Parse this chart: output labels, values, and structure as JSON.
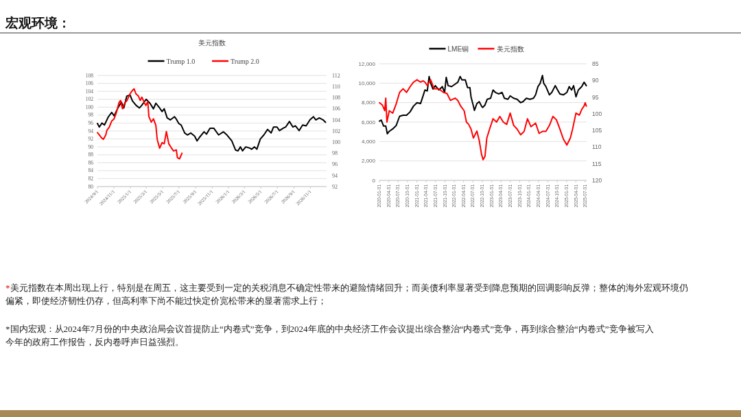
{
  "chart_data": [
    {
      "type": "other",
      "title": "宏观环境：",
      "annotations": [
        "*美元指数在本周出现上行，特别是在周五，这主要受到一定的关税消息不确定性带来的避险情绪回升；而美债利率显著受到降息预期的回调影响反弹；整体的海外宏观环境仍偏紧，即使经济韧性仍存，但高利率下尚不能过快定价宽松带来的显著需求上行；",
        "*国内宏观：从2024年7月份的中央政治局会议首提防止“内卷式”竞争，到2024年底的中央经济工作会议提出综合整治“内卷式”竞争，再到综合整治“内卷式”竞争被写入今年的政府工作报告，反内卷呼声日益强烈。"
      ]
    },
    {
      "type": "line",
      "title": "美元指数",
      "legend": "top",
      "grid": "y",
      "xlim": [
        "2024-09-01",
        "2026-12-31"
      ],
      "ylim": [
        80,
        108
      ],
      "yticks": [
        80,
        82,
        84,
        86,
        88,
        90,
        92,
        94,
        96,
        98,
        100,
        102,
        104,
        106,
        108
      ],
      "y2lim": [
        92,
        112
      ],
      "y2ticks": [
        92,
        94,
        96,
        98,
        100,
        102,
        104,
        106,
        108,
        110,
        112
      ],
      "xticks": [
        {
          "value": "2024-09-01",
          "label": "2024/9/1"
        },
        {
          "value": "2024-11-01",
          "label": "2024/11/1"
        },
        {
          "value": "2025-01-01",
          "label": "2025/1/1"
        },
        {
          "value": "2025-03-01",
          "label": "2025/3/1"
        },
        {
          "value": "2025-05-01",
          "label": "2025/5/1"
        },
        {
          "value": "2025-07-01",
          "label": "2025/7/1"
        },
        {
          "value": "2025-09-01",
          "label": "2025/9/1"
        },
        {
          "value": "2025-11-01",
          "label": "2025/11/1"
        },
        {
          "value": "2026-01-01",
          "label": "2026/1/1"
        },
        {
          "value": "2026-03-01",
          "label": "2026/3/1"
        },
        {
          "value": "2026-05-01",
          "label": "2026/5/1"
        },
        {
          "value": "2026-07-01",
          "label": "2026/7/1"
        },
        {
          "value": "2026-09-01",
          "label": "2026/9/1"
        },
        {
          "value": "2026-11-01",
          "label": "2026/11/1"
        }
      ],
      "series": [
        {
          "name": "Trump 1.0",
          "color": "#000000",
          "x": [
            "2024-09-01",
            "2024-09-08",
            "2024-09-18",
            "2024-09-27",
            "2024-10-11",
            "2024-10-24",
            "2024-11-02",
            "2024-11-16",
            "2024-11-29",
            "2024-12-08",
            "2024-12-19",
            "2024-12-31",
            "2025-01-09",
            "2025-01-22",
            "2025-02-04",
            "2025-02-13",
            "2025-03-01",
            "2025-03-15",
            "2025-03-28",
            "2025-04-06",
            "2025-04-20",
            "2025-04-29",
            "2025-05-07",
            "2025-05-18",
            "2025-05-30",
            "2025-06-14",
            "2025-06-21",
            "2025-06-30",
            "2025-07-09",
            "2025-07-22",
            "2025-08-01",
            "2025-08-14",
            "2025-08-28",
            "2025-09-06",
            "2025-09-15",
            "2025-10-02",
            "2025-10-11",
            "2025-10-24",
            "2025-11-07",
            "2025-11-25",
            "2025-12-13",
            "2025-12-26",
            "2026-01-13",
            "2026-01-27",
            "2026-02-05",
            "2026-02-14",
            "2026-02-22",
            "2026-03-06",
            "2026-03-20",
            "2026-03-28",
            "2026-04-07",
            "2026-04-16",
            "2026-04-29",
            "2026-05-12",
            "2026-05-26",
            "2026-06-08",
            "2026-06-17",
            "2026-06-30",
            "2026-07-09",
            "2026-07-23",
            "2026-08-01",
            "2026-08-15",
            "2026-08-28",
            "2026-09-06",
            "2026-09-20",
            "2026-10-03",
            "2026-10-16",
            "2026-10-30",
            "2026-11-12",
            "2026-11-21",
            "2026-12-04",
            "2026-12-18",
            "2026-12-27"
          ],
          "values": [
            95.9,
            95,
            96,
            95.5,
            97.5,
            98.7,
            97.8,
            99.8,
            101.3,
            99.8,
            102.8,
            103.1,
            101.6,
            100.5,
            99.8,
            100.5,
            102,
            101,
            99.6,
            101,
            99.8,
            98.9,
            99.6,
            97.3,
            96.8,
            97.6,
            97,
            95.9,
            95.5,
            93.5,
            93,
            93.5,
            92.7,
            91.5,
            92.4,
            93.8,
            93.2,
            94.7,
            94.7,
            93,
            93.8,
            93,
            91.5,
            89.2,
            89,
            90,
            89,
            90,
            89.7,
            89.4,
            90,
            89.4,
            92,
            93,
            94.4,
            93.5,
            95,
            95,
            94.1,
            94.7,
            95,
            96.4,
            95,
            95.3,
            94.1,
            95.5,
            95.3,
            96.8,
            97.6,
            96.8,
            97.3,
            96.8,
            96.2
          ]
        },
        {
          "name": "Trump 2.0",
          "color": "#ff0000",
          "axis": "y2",
          "x": [
            "2024-09-01",
            "2024-09-08",
            "2024-09-14",
            "2024-09-23",
            "2024-10-02",
            "2024-10-06",
            "2024-10-15",
            "2024-10-24",
            "2024-11-02",
            "2024-11-11",
            "2024-11-20",
            "2024-11-26",
            "2024-12-03",
            "2024-12-12",
            "2024-12-20",
            "2024-12-31",
            "2025-01-09",
            "2025-01-15",
            "2025-01-22",
            "2025-01-31",
            "2025-02-07",
            "2025-02-13",
            "2025-02-22",
            "2025-02-28",
            "2025-03-07",
            "2025-03-11",
            "2025-03-20",
            "2025-03-28",
            "2025-04-06",
            "2025-04-11",
            "2025-04-20",
            "2025-04-29",
            "2025-05-07",
            "2025-05-15",
            "2025-05-24",
            "2025-06-02",
            "2025-06-11",
            "2025-06-21",
            "2025-06-25",
            "2025-07-03",
            "2025-07-12"
          ],
          "values": [
            101.7,
            101.3,
            100.9,
            100.5,
            101.3,
            102.1,
            102.7,
            103.8,
            104.2,
            105.4,
            107.1,
            107.5,
            106,
            107.1,
            107.5,
            108.7,
            109.3,
            109.6,
            108.7,
            108.3,
            107.5,
            108.1,
            107.1,
            106.6,
            107.3,
            104.6,
            103.6,
            104.2,
            103,
            100.5,
            98.9,
            99.9,
            99.7,
            101.9,
            99.7,
            99,
            98.4,
            98.6,
            97.2,
            97,
            98
          ]
        }
      ]
    },
    {
      "type": "line",
      "legend": "top",
      "grid": "y",
      "xlim": [
        "2020-01-01",
        "2025-07-15"
      ],
      "ylim": [
        0,
        12000
      ],
      "yticks": [
        0,
        {
          "value": 2000,
          "label": "2,000"
        },
        {
          "value": 4000,
          "label": "4,000"
        },
        {
          "value": 6000,
          "label": "6,000"
        },
        {
          "value": 8000,
          "label": "8,000"
        },
        {
          "value": 10000,
          "label": "10,000"
        },
        {
          "value": 12000,
          "label": "12,000"
        }
      ],
      "y2lim": [
        120,
        85
      ],
      "y2ticks": [
        120,
        115,
        110,
        105,
        100,
        95,
        90,
        85
      ],
      "xticks": [
        {
          "value": "2020-01-01",
          "label": "2020-01-01"
        },
        {
          "value": "2020-04-01",
          "label": "2020-04-01"
        },
        {
          "value": "2020-07-01",
          "label": "2020-07-01"
        },
        {
          "value": "2020-10-01",
          "label": "2020-10-01"
        },
        {
          "value": "2021-01-01",
          "label": "2021-01-01"
        },
        {
          "value": "2021-04-01",
          "label": "2021-04-01"
        },
        {
          "value": "2021-07-01",
          "label": "2021-07-01"
        },
        {
          "value": "2021-10-01",
          "label": "2021-10-01"
        },
        {
          "value": "2022-01-01",
          "label": "2022-01-01"
        },
        {
          "value": "2022-04-01",
          "label": "2022-04-01"
        },
        {
          "value": "2022-07-01",
          "label": "2022-07-01"
        },
        {
          "value": "2022-10-01",
          "label": "2022-10-01"
        },
        {
          "value": "2023-01-01",
          "label": "2023-01-01"
        },
        {
          "value": "2023-04-01",
          "label": "2023-04-01"
        },
        {
          "value": "2023-07-01",
          "label": "2023-07-01"
        },
        {
          "value": "2023-10-01",
          "label": "2023-10-01"
        },
        {
          "value": "2024-01-01",
          "label": "2024-01-01"
        },
        {
          "value": "2024-04-01",
          "label": "2024-04-01"
        },
        {
          "value": "2024-07-01",
          "label": "2024-07-01"
        },
        {
          "value": "2024-10-01",
          "label": "2024-10-01"
        },
        {
          "value": "2025-01-01",
          "label": "2025-01-01"
        },
        {
          "value": "2025-04-01",
          "label": "2025-04-01"
        },
        {
          "value": "2025-07-01",
          "label": "2025-07-01"
        }
      ],
      "series": [
        {
          "name": "LME铜",
          "color": "#000000",
          "x": [
            "2020-01-01",
            "2020-01-19",
            "2020-02-10",
            "2020-03-03",
            "2020-03-18",
            "2020-04-06",
            "2020-05-10",
            "2020-06-13",
            "2020-07-16",
            "2020-08-19",
            "2020-09-22",
            "2020-10-26",
            "2020-11-29",
            "2021-01-02",
            "2021-02-05",
            "2021-02-27",
            "2021-03-20",
            "2021-04-12",
            "2021-04-30",
            "2021-05-15",
            "2021-06-07",
            "2021-06-30",
            "2021-08-03",
            "2021-09-06",
            "2021-09-28",
            "2021-10-14",
            "2021-11-01",
            "2021-12-05",
            "2022-01-08",
            "2022-02-04",
            "2022-02-27",
            "2022-03-15",
            "2022-04-18",
            "2022-05-10",
            "2022-06-02",
            "2022-06-13",
            "2022-07-06",
            "2022-07-16",
            "2022-08-09",
            "2022-09-01",
            "2022-09-23",
            "2022-10-04",
            "2022-10-27",
            "2022-11-18",
            "2022-12-21",
            "2023-01-14",
            "2023-02-06",
            "2023-03-10",
            "2023-04-12",
            "2023-05-05",
            "2023-06-08",
            "2023-06-30",
            "2023-08-03",
            "2023-09-06",
            "2023-10-10",
            "2023-11-02",
            "2023-12-05",
            "2024-01-08",
            "2024-02-12",
            "2024-03-04",
            "2024-03-27",
            "2024-04-18",
            "2024-05-10",
            "2024-05-22",
            "2024-06-13",
            "2024-07-17",
            "2024-08-09",
            "2024-09-12",
            "2024-10-05",
            "2024-10-27",
            "2024-11-30",
            "2025-01-03",
            "2025-01-26",
            "2025-02-18",
            "2025-03-10",
            "2025-04-02",
            "2025-04-25",
            "2025-05-28",
            "2025-06-20",
            "2025-07-12"
          ],
          "values": [
            6100,
            6200,
            5600,
            5600,
            4800,
            5050,
            5300,
            5650,
            6600,
            6700,
            6700,
            7050,
            7650,
            8000,
            7900,
            8600,
            9300,
            9200,
            10700,
            10000,
            9400,
            9750,
            9300,
            9650,
            9050,
            10600,
            9750,
            9650,
            9900,
            10100,
            10700,
            10350,
            10350,
            9550,
            9550,
            8600,
            7650,
            7200,
            7900,
            8100,
            7650,
            7500,
            7750,
            8350,
            8450,
            9300,
            9050,
            8900,
            9050,
            8450,
            8350,
            8700,
            8450,
            8350,
            8000,
            8100,
            8450,
            8350,
            8450,
            8800,
            9650,
            10000,
            10800,
            10000,
            9650,
            8800,
            9050,
            9750,
            9300,
            8900,
            8800,
            9050,
            9650,
            9300,
            9750,
            8600,
            9300,
            9650,
            10100,
            9750
          ]
        },
        {
          "name": "美元指数",
          "color": "#ff0000",
          "axis": "y2",
          "x": [
            "2020-01-01",
            "2020-01-30",
            "2020-02-22",
            "2020-03-03",
            "2020-03-14",
            "2020-04-06",
            "2020-05-10",
            "2020-06-13",
            "2020-07-16",
            "2020-08-19",
            "2020-09-22",
            "2020-10-26",
            "2020-11-29",
            "2021-01-02",
            "2021-02-05",
            "2021-03-02",
            "2021-03-20",
            "2021-04-12",
            "2021-05-15",
            "2021-06-18",
            "2021-08-03",
            "2021-09-17",
            "2021-10-21",
            "2021-11-24",
            "2022-01-08",
            "2022-02-04",
            "2022-03-04",
            "2022-04-07",
            "2022-04-29",
            "2022-05-21",
            "2022-06-13",
            "2022-07-06",
            "2022-08-09",
            "2022-09-01",
            "2022-09-23",
            "2022-10-09",
            "2022-10-27",
            "2022-11-14",
            "2022-12-11",
            "2023-01-14",
            "2023-02-17",
            "2023-03-21",
            "2023-04-24",
            "2023-05-27",
            "2023-06-30",
            "2023-08-03",
            "2023-09-06",
            "2023-10-10",
            "2023-11-13",
            "2023-12-16",
            "2024-01-19",
            "2024-03-04",
            "2024-04-07",
            "2024-05-10",
            "2024-06-13",
            "2024-07-17",
            "2024-08-20",
            "2024-09-23",
            "2024-10-27",
            "2024-11-30",
            "2025-01-03",
            "2025-02-06",
            "2025-02-28",
            "2025-04-02",
            "2025-05-05",
            "2025-05-28",
            "2025-06-20",
            "2025-07-01",
            "2025-07-12"
          ],
          "values": [
            96.7,
            97.4,
            99.1,
            95.3,
            102.5,
            99.1,
            99.8,
            97,
            93.6,
            92.5,
            93.6,
            91.9,
            90.5,
            89.8,
            90.5,
            90.1,
            90.5,
            91.5,
            89.8,
            92.5,
            92.5,
            93.6,
            93.9,
            96,
            95.3,
            96,
            97.7,
            99.1,
            102.5,
            103.2,
            104.6,
            107.3,
            105.2,
            108,
            112.1,
            113.8,
            112.8,
            107.3,
            104.6,
            101.5,
            102.5,
            100.8,
            102.5,
            103.2,
            99.8,
            103.5,
            104.6,
            106.3,
            105.3,
            101.5,
            103.9,
            102.8,
            105.9,
            105.3,
            105.3,
            103.5,
            100.8,
            101.8,
            104.6,
            107.6,
            109.4,
            107.3,
            104.6,
            99.8,
            100.4,
            98.7,
            97.7,
            96.7,
            97.7
          ]
        }
      ]
    }
  ]
}
